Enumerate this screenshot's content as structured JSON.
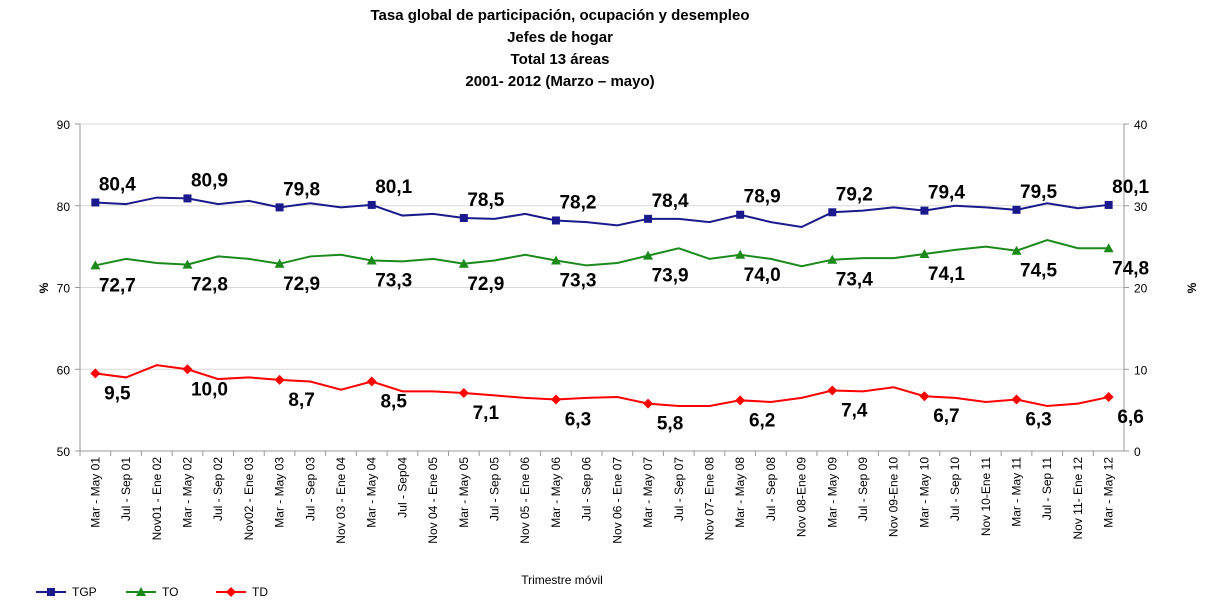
{
  "chart_data": {
    "type": "line",
    "title": "Tasa global de participación, ocupación y desempleo",
    "subtitle": [
      "Jefes de hogar",
      "Total 13 áreas",
      "2001- 2012 (Marzo – mayo)"
    ],
    "xlabel": "Trimestre móvil",
    "ylabel": "%",
    "y2label": "%",
    "categories": [
      "Mar - May 01",
      "Jul - Sep 01",
      "Nov01 - Ene 02",
      "Mar - May 02",
      "Jul - Sep 02",
      "Nov02 - Ene 03",
      "Mar - May 03",
      "Jul - Sep 03",
      "Nov 03 - Ene 04",
      "Mar - May 04",
      "Jul - Sep04",
      "Nov 04 - Ene 05",
      "Mar - May 05",
      "Jul - Sep 05",
      "Nov 05 - Ene 06",
      "Mar - May 06",
      "Jul - Sep 06",
      "Nov 06 - Ene 07",
      "Mar - May 07",
      "Jul - Sep 07",
      "Nov 07- Ene 08",
      "Mar - May 08",
      "Jul - Sep 08",
      "Nov 08-Ene 09",
      "Mar - May 09",
      "Jul - Sep 09",
      "Nov 09-Ene 10",
      "Mar - May 10",
      "Jul - Sep 10",
      "Nov 10-Ene 11",
      "Mar - May 11",
      "Jul - Sep 11",
      "Nov 11- Ene 12",
      "Mar - May 12"
    ],
    "ylim": [
      50,
      90
    ],
    "yticks": [
      50,
      60,
      70,
      80,
      90
    ],
    "y2lim": [
      0,
      40
    ],
    "y2ticks": [
      0,
      10,
      20,
      30,
      40
    ],
    "grid": true,
    "legend": "bottom-left",
    "series": [
      {
        "name": "TGP",
        "color": "#1a1a8c",
        "marker": "square",
        "label_position": "above",
        "values": [
          80.4,
          80.2,
          81.0,
          80.9,
          80.2,
          80.6,
          79.8,
          80.3,
          79.8,
          80.1,
          78.8,
          79.0,
          78.5,
          78.4,
          79.0,
          78.2,
          78.0,
          77.6,
          78.4,
          78.4,
          78.0,
          78.9,
          78.0,
          77.4,
          79.2,
          79.4,
          79.8,
          79.4,
          80.0,
          79.8,
          79.5,
          80.3,
          79.7,
          80.1
        ],
        "value_labels": [
          "80,4",
          null,
          null,
          "80,9",
          null,
          null,
          "79,8",
          null,
          null,
          "80,1",
          null,
          null,
          "78,5",
          null,
          null,
          "78,2",
          null,
          null,
          "78,4",
          null,
          null,
          "78,9",
          null,
          null,
          "79,2",
          null,
          null,
          "79,4",
          null,
          null,
          "79,5",
          null,
          null,
          "80,1"
        ]
      },
      {
        "name": "TO",
        "color": "#1a8a1a",
        "marker": "triangle",
        "label_position": "below",
        "values": [
          72.7,
          73.5,
          73.0,
          72.8,
          73.8,
          73.5,
          72.9,
          73.8,
          74.0,
          73.3,
          73.2,
          73.5,
          72.9,
          73.3,
          74.0,
          73.3,
          72.7,
          73.0,
          73.9,
          74.8,
          73.5,
          74.0,
          73.5,
          72.6,
          73.4,
          73.6,
          73.6,
          74.1,
          74.6,
          75.0,
          74.5,
          75.8,
          74.8,
          74.8
        ],
        "value_labels": [
          "72,7",
          null,
          null,
          "72,8",
          null,
          null,
          "72,9",
          null,
          null,
          "73,3",
          null,
          null,
          "72,9",
          null,
          null,
          "73,3",
          null,
          null,
          "73,9",
          null,
          null,
          "74,0",
          null,
          null,
          "73,4",
          null,
          null,
          "74,1",
          null,
          null,
          "74,5",
          null,
          null,
          "74,8"
        ]
      },
      {
        "name": "TD",
        "color": "#ff0000",
        "marker": "diamond",
        "label_position": "below",
        "axis": "y2",
        "values": [
          9.5,
          9.0,
          10.5,
          10.0,
          8.8,
          9.0,
          8.7,
          8.5,
          7.5,
          8.5,
          7.3,
          7.3,
          7.1,
          6.8,
          6.5,
          6.3,
          6.5,
          6.6,
          5.8,
          5.5,
          5.5,
          6.2,
          6.0,
          6.5,
          7.4,
          7.3,
          7.8,
          6.7,
          6.5,
          6.0,
          6.3,
          5.5,
          5.8,
          6.6
        ],
        "value_labels": [
          "9,5",
          null,
          null,
          "10,0",
          null,
          null,
          "8,7",
          null,
          null,
          "8,5",
          null,
          null,
          "7,1",
          null,
          null,
          "6,3",
          null,
          null,
          "5,8",
          null,
          null,
          "6,2",
          null,
          null,
          "7,4",
          null,
          null,
          "6,7",
          null,
          null,
          "6,3",
          null,
          null,
          "6,6"
        ]
      }
    ]
  }
}
